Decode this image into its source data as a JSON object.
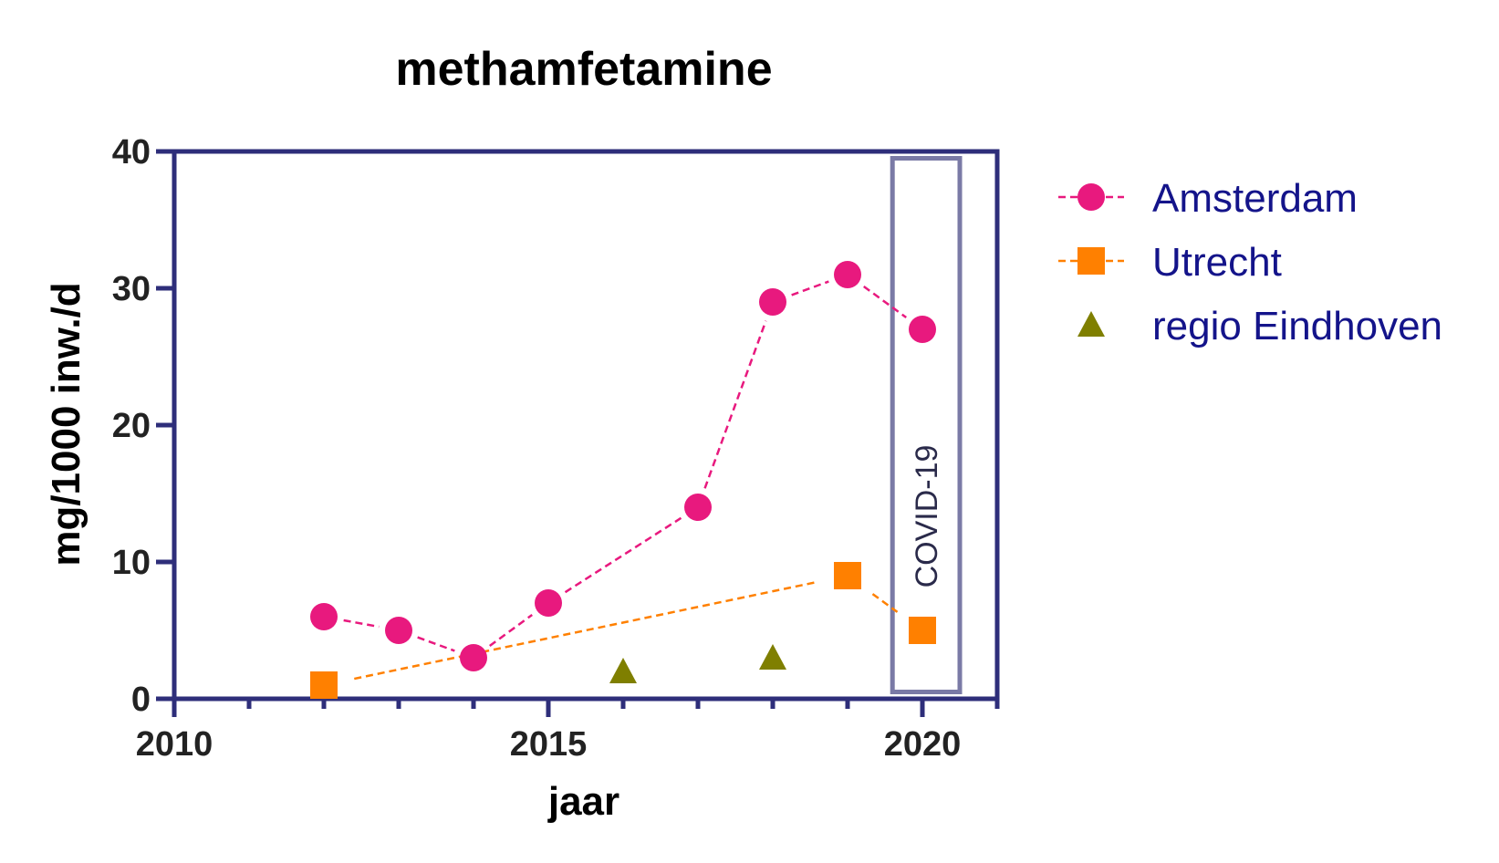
{
  "chart_data": {
    "type": "scatter",
    "title": "methamfetamine",
    "xlabel": "jaar",
    "ylabel": "mg/1000 inw./d",
    "xlim": [
      2010,
      2021
    ],
    "ylim": [
      0,
      40
    ],
    "x_ticks": [
      2010,
      2015,
      2020
    ],
    "x_minor_ticks": [
      2011,
      2012,
      2013,
      2014,
      2016,
      2017,
      2018,
      2019,
      2021
    ],
    "y_ticks": [
      0,
      10,
      20,
      30,
      40
    ],
    "grid": false,
    "legend_position": "right",
    "series": [
      {
        "name": "Amsterdam",
        "marker": "circle",
        "line": "dashed",
        "color": "#e8197e",
        "points": [
          {
            "x": 2012,
            "y": 6
          },
          {
            "x": 2013,
            "y": 5
          },
          {
            "x": 2014,
            "y": 3
          },
          {
            "x": 2015,
            "y": 7
          },
          {
            "x": 2017,
            "y": 14
          },
          {
            "x": 2018,
            "y": 29
          },
          {
            "x": 2019,
            "y": 31
          },
          {
            "x": 2020,
            "y": 27
          }
        ]
      },
      {
        "name": "Utrecht",
        "marker": "square",
        "line": "dashed",
        "color": "#ff8000",
        "points": [
          {
            "x": 2012,
            "y": 1
          },
          {
            "x": 2019,
            "y": 9
          },
          {
            "x": 2020,
            "y": 5
          }
        ]
      },
      {
        "name": "regio Eindhoven",
        "marker": "triangle",
        "line": "none",
        "color": "#7f7f00",
        "points": [
          {
            "x": 2016,
            "y": 2
          },
          {
            "x": 2018,
            "y": 3
          }
        ]
      }
    ],
    "annotations": [
      {
        "text": "COVID-19",
        "x_range": [
          2019.6,
          2020.5
        ],
        "y_range": [
          0.5,
          39.5
        ]
      }
    ]
  },
  "colors": {
    "axis": "#2e2e7a",
    "legend_text": "#14148a",
    "covid_box": "#7a7aa6"
  }
}
